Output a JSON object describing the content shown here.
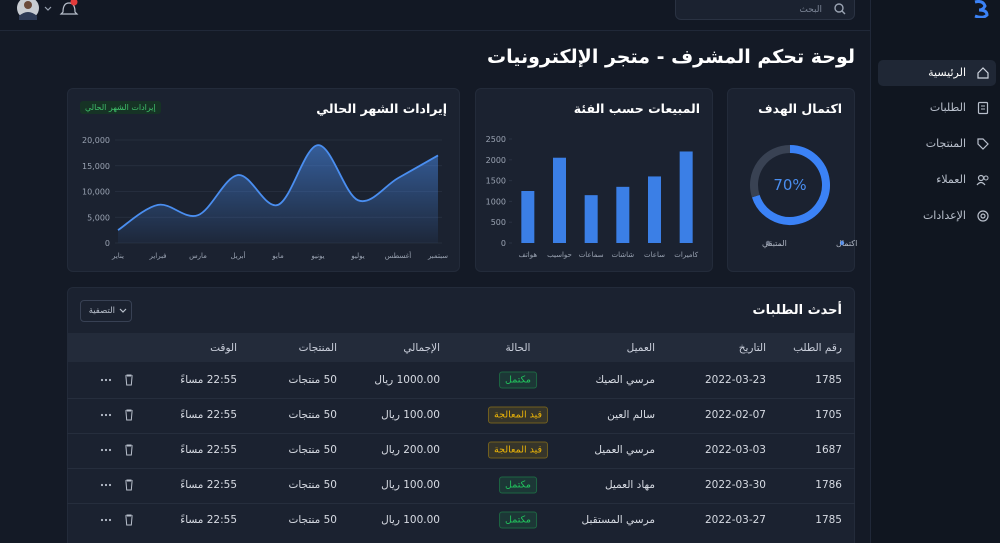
{
  "topbar": {
    "search_placeholder": "البحث"
  },
  "sidebar": {
    "nav": [
      "الرئيسية",
      "الطلبات",
      "المنتجات",
      "العملاء",
      "الإعدادات"
    ]
  },
  "page_title": "لوحة تحكم المشرف - متجر الإلكترونيات",
  "chart_data": [
    {
      "type": "donut",
      "title": "اكتمال الهدف",
      "categories": [
        "اكتمال",
        "المتبقي"
      ],
      "values": [
        70,
        30
      ],
      "value_labels": [
        "70%",
        null
      ],
      "colors": [
        "#3b82f6",
        "#394253"
      ]
    },
    {
      "type": "bar",
      "title": "المبيعات حسب الفئة",
      "categories": [
        "هواتف",
        "حواسيب",
        "سماعات",
        "شاشات",
        "ساعات",
        "كاميرات"
      ],
      "values": [
        1250,
        2050,
        1150,
        1350,
        1600,
        2200
      ],
      "color": "#3b7fe6",
      "ylim": [
        0,
        2500
      ],
      "yticks": [
        0,
        500,
        1000,
        1500,
        2000,
        2500
      ],
      "grid": false
    },
    {
      "type": "area",
      "title": "إيرادات الشهر الحالي",
      "badge": "إيرادات الشهر الحالي",
      "categories": [
        "يناير",
        "فبراير",
        "مارس",
        "أبريل",
        "مايو",
        "يونيو",
        "يوليو",
        "أغسطس",
        "سبتمبر"
      ],
      "values": [
        2500,
        7400,
        5400,
        13200,
        7400,
        19000,
        8300,
        12600,
        17000
      ],
      "color": "#4a8ef0",
      "ylim": [
        0,
        20000
      ],
      "yticks": [
        0,
        {
          "value": 5000,
          "label": "5,000"
        },
        {
          "value": 10000,
          "label": "10,000"
        },
        {
          "value": 15000,
          "label": "15,000"
        },
        {
          "value": 20000,
          "label": "20,000"
        }
      ],
      "grid": true
    }
  ],
  "orders": {
    "title": "أحدث الطلبات",
    "filter": "التصفية",
    "columns": [
      "رقم الطلب",
      "التاريخ",
      "العميل",
      "الحالة",
      "الإجمالي",
      "المنتجات",
      "الوقت"
    ],
    "rows": [
      [
        "1785",
        "2022-03-23",
        "مرسي الصيك",
        "مكتمل",
        "1000.00 ريال",
        "50 منتجات",
        "22:55 مساءً"
      ],
      [
        "1705",
        "2022-02-07",
        "سالم العين",
        "قيد المعالجة",
        "100.00 ريال",
        "50 منتجات",
        "22:55 مساءً"
      ],
      [
        "1687",
        "2022-03-03",
        "مرسي العميل",
        "قيد المعالجة",
        "200.00 ريال",
        "50 منتجات",
        "22:55 مساءً"
      ],
      [
        "1786",
        "2022-03-30",
        "مهاد العميل",
        "مكتمل",
        "100.00 ريال",
        "50 منتجات",
        "22:55 مساءً"
      ],
      [
        "1785",
        "2022-03-27",
        "مرسي المستقبل",
        "مكتمل",
        "100.00 ريال",
        "50 منتجات",
        "22:55 مساءً"
      ]
    ],
    "status_colors": [
      "#22c55e",
      "#eab308",
      "#eab308",
      "#22c55e",
      "#22c55e"
    ]
  }
}
